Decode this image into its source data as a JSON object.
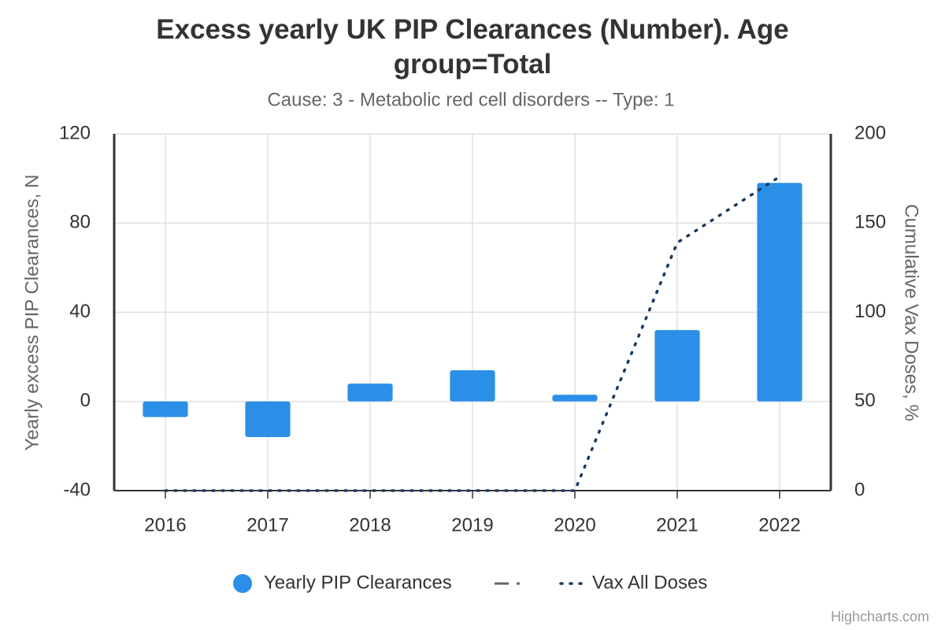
{
  "chart_data": {
    "type": "bar",
    "title": "Excess yearly UK PIP Clearances (Number). Age group=Total",
    "subtitle": "Cause: 3 - Metabolic red cell disorders -- Type: 1",
    "y_label": "Yearly excess PIP Clearances, N",
    "y2_label": "Cumulative Vax Doses, %",
    "credits": "Highcharts.com",
    "categories": [
      "2016",
      "2017",
      "2018",
      "2019",
      "2020",
      "2021",
      "2022"
    ],
    "series": [
      {
        "name": "Yearly PIP Clearances",
        "type": "bar",
        "color": "#2b8fe8",
        "values": [
          -7,
          -16,
          8,
          14,
          3,
          32,
          98
        ]
      },
      {
        "name": "Vax All Doses",
        "type": "line",
        "axis": "y2",
        "color": "#1b3a5e",
        "values": [
          0,
          0,
          0,
          0,
          0,
          139,
          176
        ]
      }
    ],
    "ylim": [
      -40,
      120
    ],
    "yticks": [
      -40,
      0,
      40,
      80,
      120
    ],
    "y2lim": [
      0,
      200
    ],
    "y2ticks": [
      0,
      50,
      100,
      150,
      200
    ],
    "grid": true
  }
}
